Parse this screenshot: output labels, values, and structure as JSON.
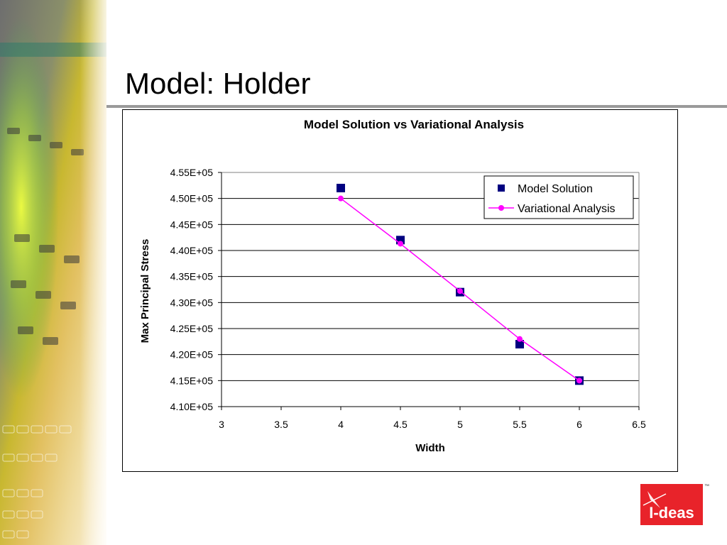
{
  "slide": {
    "title": "Model: Holder",
    "logo_text": "I-deas",
    "logo_tm": "™"
  },
  "colors": {
    "model_series": "#000080",
    "variational_series": "#ff00ff",
    "logo_red": "#e8232a",
    "rule": "#9a9a9a"
  },
  "chart_data": {
    "type": "scatter",
    "title": "Model Solution vs Variational Analysis",
    "xlabel": "Width",
    "ylabel": "Max Principal Stress",
    "xlim": [
      3,
      6.5
    ],
    "ylim": [
      410000,
      455000
    ],
    "x_ticks": [
      "3",
      "3.5",
      "4",
      "4.5",
      "5",
      "5.5",
      "6",
      "6.5"
    ],
    "y_ticks": [
      "4.10E+05",
      "4.15E+05",
      "4.20E+05",
      "4.25E+05",
      "4.30E+05",
      "4.35E+05",
      "4.40E+05",
      "4.45E+05",
      "4.50E+05",
      "4.55E+05"
    ],
    "grid": "horizontal",
    "legend_position": "top-right",
    "series": [
      {
        "name": "Model Solution",
        "marker": "square",
        "line": false,
        "x": [
          4,
          4.5,
          5,
          5.5,
          6
        ],
        "y": [
          452000,
          442000,
          432000,
          422000,
          415000
        ]
      },
      {
        "name": "Variational Analysis",
        "marker": "circle",
        "line": true,
        "x": [
          4,
          4.5,
          5,
          5.5,
          6
        ],
        "y": [
          450000,
          441300,
          432200,
          423000,
          415000
        ]
      }
    ]
  }
}
